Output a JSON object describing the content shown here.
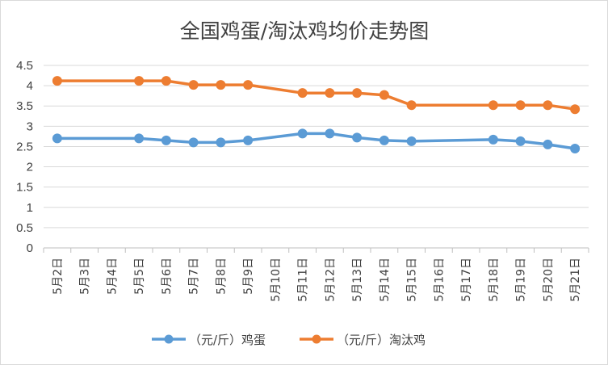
{
  "chart_data": {
    "type": "line",
    "title": "全国鸡蛋/淘汰鸡均价走势图",
    "xlabel": "",
    "ylabel": "",
    "ylim": [
      0,
      4.5
    ],
    "yticks": [
      "0",
      "0.5",
      "1",
      "1.5",
      "2",
      "2.5",
      "3",
      "3.5",
      "4",
      "4.5"
    ],
    "grid": true,
    "legend_position": "bottom",
    "categories": [
      "5月2日",
      "5月3日",
      "5月4日",
      "5月5日",
      "5月6日",
      "5月7日",
      "5月8日",
      "5月9日",
      "5月10日",
      "5月11日",
      "5月12日",
      "5月13日",
      "5月14日",
      "5月15日",
      "5月16日",
      "5月17日",
      "5月18日",
      "5月19日",
      "5月20日",
      "5月21日"
    ],
    "series": [
      {
        "name": "（元/斤）鸡蛋",
        "color": "#5b9bd5",
        "values": [
          2.7,
          null,
          null,
          2.7,
          2.65,
          2.6,
          2.6,
          2.65,
          null,
          2.82,
          2.82,
          2.72,
          2.65,
          2.63,
          null,
          null,
          2.67,
          2.63,
          2.55,
          2.45
        ]
      },
      {
        "name": "（元/斤）淘汰鸡",
        "color": "#ed7d31",
        "values": [
          4.12,
          null,
          null,
          4.12,
          4.12,
          4.02,
          4.02,
          4.02,
          null,
          3.82,
          3.82,
          3.82,
          3.77,
          3.52,
          null,
          null,
          3.52,
          3.52,
          3.52,
          3.42
        ]
      }
    ]
  }
}
